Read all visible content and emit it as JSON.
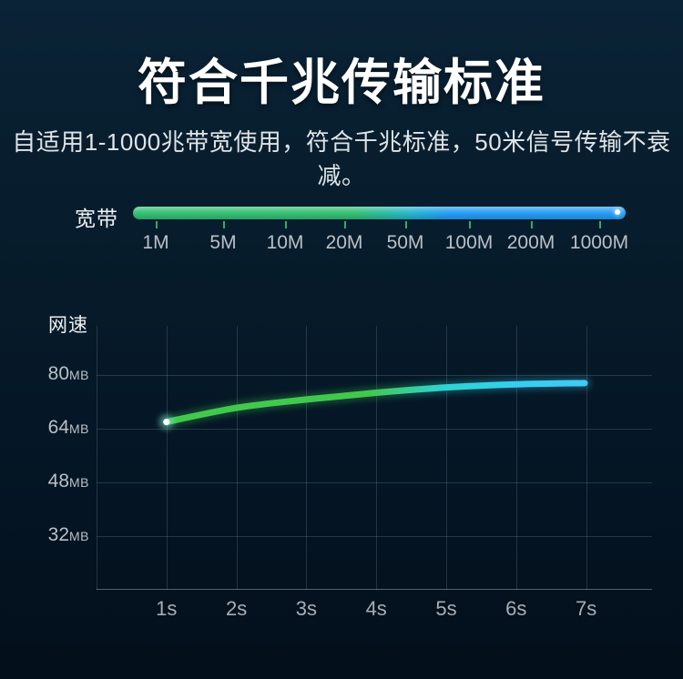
{
  "page": {
    "title": "符合千兆传输标准",
    "subtitle": "自适用1-1000兆带宽使用，符合千兆标准，50米信号传输不衰减。"
  },
  "bandwidth": {
    "label": "宽带",
    "ticks": [
      "1M",
      "5M",
      "10M",
      "20M",
      "50M",
      "100M",
      "200M",
      "1000M"
    ],
    "colors": {
      "bar_green": "#2ebd6e",
      "bar_blue": "#1e9af5",
      "tick_green": "#2fae67",
      "endpoint_dot": "#ffffff"
    }
  },
  "chart_data": {
    "type": "line",
    "title_label": "网速",
    "x": [
      "1s",
      "2s",
      "3s",
      "4s",
      "5s",
      "6s",
      "7s"
    ],
    "series": [
      {
        "name": "网速",
        "values": [
          66,
          70.2,
          72.7,
          74.7,
          76.3,
          77.2,
          77.6
        ]
      }
    ],
    "yticks": [
      {
        "label": "80",
        "unit": "MB",
        "value": 80
      },
      {
        "label": "64",
        "unit": "MB",
        "value": 64
      },
      {
        "label": "48",
        "unit": "MB",
        "value": 48
      },
      {
        "label": "32",
        "unit": "MB",
        "value": 32
      }
    ],
    "ylim": [
      16,
      96
    ],
    "grid": "on",
    "legend": "none",
    "colors": {
      "curve_green": "#41c94d",
      "curve_cyan": "#2fd3cf",
      "curve_blue": "#41c9f6",
      "start_dot": "#ffffff"
    }
  }
}
